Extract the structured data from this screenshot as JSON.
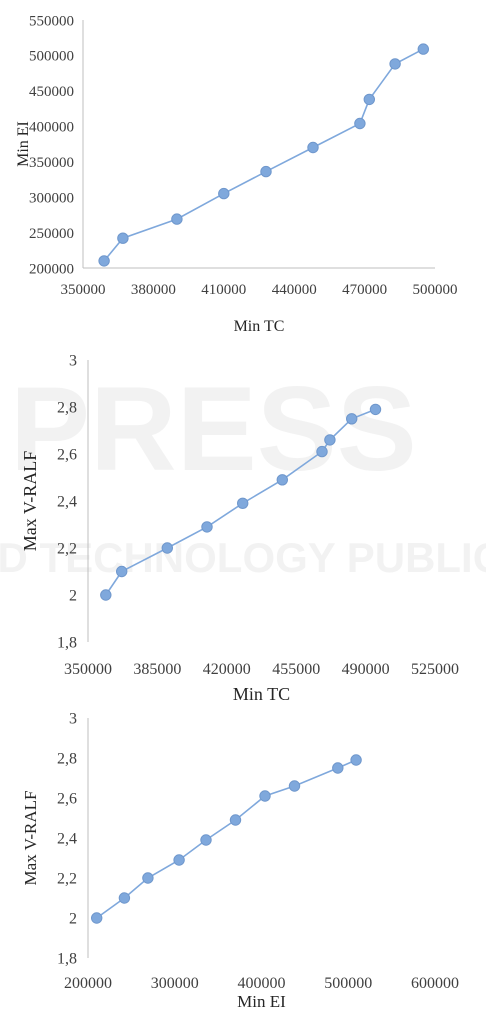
{
  "watermark": {
    "line1": "PRESS",
    "line2": "SCIENCE AND TECHNOLOGY PUBLICATIONS"
  },
  "chart_data": [
    {
      "type": "scatter",
      "title": "",
      "xlabel": "Min TC",
      "ylabel": "Min EI",
      "xlim": [
        350000,
        500000
      ],
      "ylim": [
        200000,
        550000
      ],
      "xticks": [
        "350000",
        "380000",
        "410000",
        "440000",
        "470000",
        "500000"
      ],
      "yticks": [
        "200000",
        "250000",
        "300000",
        "350000",
        "400000",
        "450000",
        "500000",
        "550000"
      ],
      "grid": false,
      "color": "#7fa8dc",
      "series": [
        {
          "x": [
            359000,
            367000,
            390000,
            410000,
            428000,
            448000,
            468000,
            472000,
            483000,
            495000
          ],
          "y": [
            210000,
            242000,
            269000,
            305000,
            336000,
            370000,
            404000,
            438000,
            488000,
            509000
          ]
        }
      ]
    },
    {
      "type": "scatter",
      "title": "",
      "xlabel": "Min TC",
      "ylabel": "Max V-RALF",
      "xlim": [
        350000,
        525000
      ],
      "ylim": [
        1.8,
        3
      ],
      "xticks": [
        "350000",
        "385000",
        "420000",
        "455000",
        "490000",
        "525000"
      ],
      "yticks": [
        "1,8",
        "2",
        "2,2",
        "2,4",
        "2,6",
        "2,8",
        "3"
      ],
      "grid": false,
      "color": "#7fa8dc",
      "series": [
        {
          "x": [
            359000,
            367000,
            390000,
            410000,
            428000,
            448000,
            468000,
            472000,
            483000,
            495000
          ],
          "y": [
            2.0,
            2.1,
            2.2,
            2.29,
            2.39,
            2.49,
            2.61,
            2.66,
            2.75,
            2.79
          ]
        }
      ]
    },
    {
      "type": "scatter",
      "title": "",
      "xlabel": "Min EI",
      "ylabel": "Max V-RALF",
      "xlim": [
        200000,
        600000
      ],
      "ylim": [
        1.8,
        3
      ],
      "xticks": [
        "200000",
        "300000",
        "400000",
        "500000",
        "600000"
      ],
      "yticks": [
        "1,8",
        "2",
        "2,2",
        "2,4",
        "2,6",
        "2,8",
        "3"
      ],
      "grid": false,
      "color": "#7fa8dc",
      "series": [
        {
          "x": [
            210000,
            242000,
            269000,
            305000,
            336000,
            370000,
            404000,
            438000,
            488000,
            509000
          ],
          "y": [
            2.0,
            2.1,
            2.2,
            2.29,
            2.39,
            2.49,
            2.61,
            2.66,
            2.75,
            2.79
          ]
        }
      ]
    }
  ]
}
